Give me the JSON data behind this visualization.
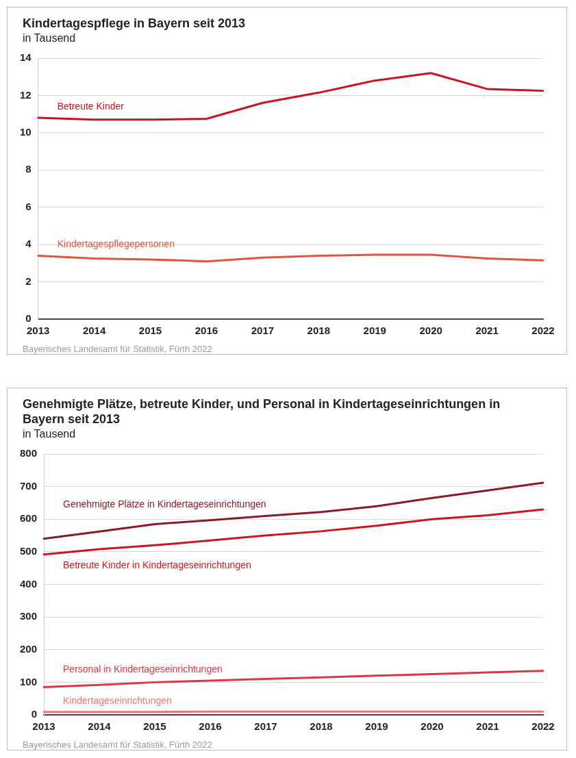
{
  "chart_data": [
    {
      "type": "line",
      "title": "Kindertagespflege in Bayern seit 2013",
      "subtitle": "in Tausend",
      "categories": [
        "2013",
        "2014",
        "2015",
        "2016",
        "2017",
        "2018",
        "2019",
        "2020",
        "2021",
        "2022"
      ],
      "series": [
        {
          "name": "Betreute Kinder",
          "color": "#c8141e",
          "values": [
            10.8,
            10.7,
            10.7,
            10.75,
            11.6,
            12.15,
            12.8,
            13.2,
            12.35,
            12.25
          ]
        },
        {
          "name": "Kindertagespflegepersonen",
          "color": "#e2553c",
          "values": [
            3.4,
            3.25,
            3.2,
            3.1,
            3.3,
            3.4,
            3.45,
            3.45,
            3.25,
            3.15
          ]
        }
      ],
      "ylim": [
        0,
        14
      ],
      "yticks": [
        0,
        2,
        4,
        6,
        8,
        10,
        12,
        14
      ],
      "grid": "y",
      "legend": false,
      "marker": "none",
      "line_style": "solid",
      "annotations": [
        "Bayerisches Landesamt für Statistik, Fürth 2022"
      ]
    },
    {
      "type": "line",
      "title": "Genehmigte Plätze, betreute Kinder, und Personal in Kindertageseinrichtungen in Bayern seit 2013",
      "subtitle": "in Tausend",
      "categories": [
        "2013",
        "2014",
        "2015",
        "2016",
        "2017",
        "2018",
        "2019",
        "2020",
        "2021",
        "2022"
      ],
      "series": [
        {
          "name": "Genehmigte Plätze in Kindertageseinrichtungen",
          "color": "#8c1a22",
          "values": [
            540,
            562,
            585,
            597,
            610,
            622,
            640,
            665,
            688,
            712
          ]
        },
        {
          "name": "Betreute Kinder in Kindertageseinrichtungen",
          "color": "#d0141e",
          "values": [
            492,
            508,
            520,
            535,
            550,
            563,
            580,
            600,
            612,
            630
          ]
        },
        {
          "name": "Personal in Kindertageseinrichtungen",
          "color": "#e03444",
          "values": [
            85,
            92,
            100,
            105,
            110,
            115,
            120,
            125,
            130,
            135
          ]
        },
        {
          "name": "Kindertageseinrichtungen",
          "color": "#f07474",
          "values": [
            9,
            9,
            9,
            10,
            10,
            10,
            10,
            10,
            10,
            10
          ]
        }
      ],
      "ylim": [
        0,
        800
      ],
      "yticks": [
        0,
        100,
        200,
        300,
        400,
        500,
        600,
        700,
        800
      ],
      "grid": "y",
      "legend": false,
      "marker": "none",
      "line_style": "solid",
      "annotations": [
        "Bayerisches Landesamt für Statistik, Fürth 2022"
      ]
    }
  ]
}
